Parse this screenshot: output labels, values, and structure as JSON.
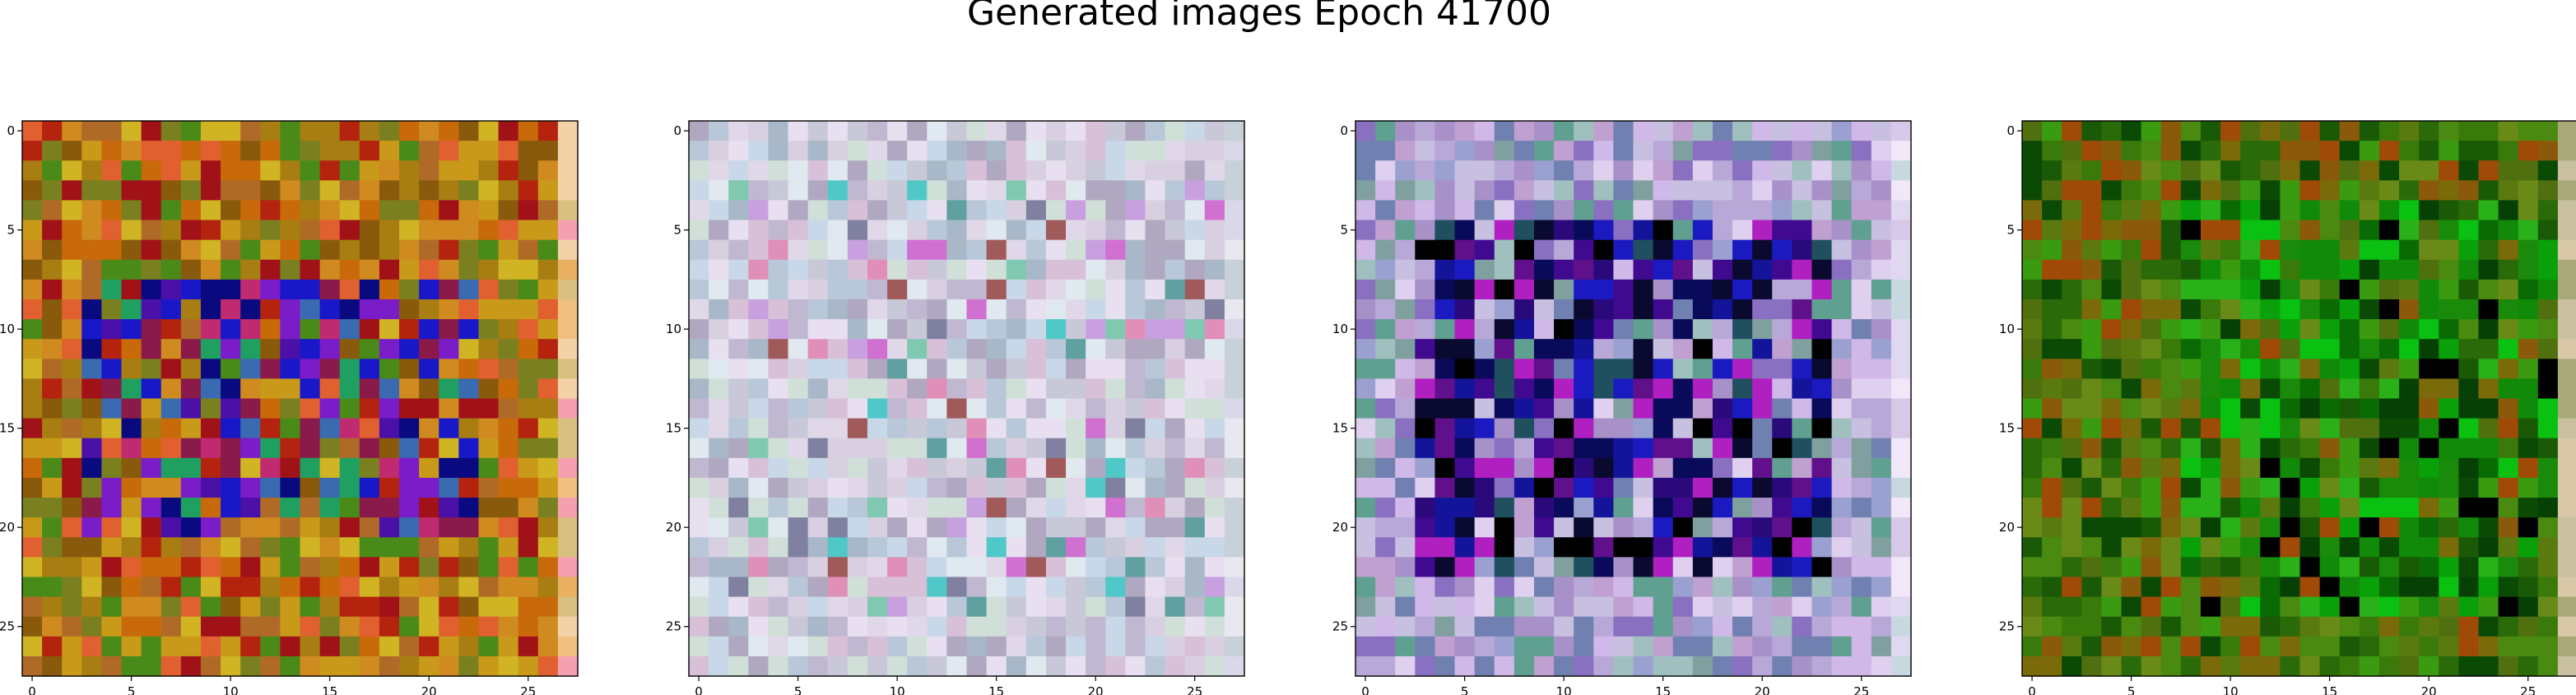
{
  "chart_data": {
    "type": "heatmap",
    "title": "Generated images Epoch 41700",
    "grid": false,
    "panels": [
      {
        "name": "",
        "rows": 28,
        "cols": 28,
        "xlim": [
          -0.5,
          27.5
        ],
        "ylim": [
          27.5,
          -0.5
        ],
        "xticks": [
          0,
          5,
          10,
          15,
          20,
          25
        ],
        "yticks": [
          0,
          5,
          10,
          15,
          20,
          25
        ],
        "palette": [
          "#b4230e",
          "#c86a0a",
          "#a87d12",
          "#8a5a0c",
          "#c99a1a",
          "#d0b424",
          "#7a8020",
          "#4a8a18",
          "#a01218",
          "#e06030",
          "#b06a28",
          "#cf8a20"
        ],
        "center_palette": [
          "#1818c8",
          "#4a10a8",
          "#7a1cc8",
          "#0a0a80",
          "#3a6ab0",
          "#8a1a4a",
          "#20a060",
          "#c02a70"
        ],
        "edge_palette": [
          "#f0c080",
          "#f3d2a8",
          "#e8b060",
          "#f5a0b0",
          "#d8c080"
        ],
        "center": {
          "row_range": [
            8,
            20
          ],
          "col_range": [
            3,
            22
          ],
          "density": 0.55
        }
      },
      {
        "name": "",
        "rows": 28,
        "cols": 28,
        "xlim": [
          -0.5,
          27.5
        ],
        "ylim": [
          27.5,
          -0.5
        ],
        "xticks": [
          0,
          5,
          10,
          15,
          20,
          25
        ],
        "yticks": [
          0,
          5,
          10,
          15,
          20,
          25
        ],
        "palette": [
          "#d8d0e0",
          "#c8c8d8",
          "#e0d8e8",
          "#b8c8d8",
          "#d0e0d8",
          "#c0b8d0",
          "#e8e0f0",
          "#a8b8c8",
          "#d8c0d8",
          "#c8d8e8",
          "#b0a8c0",
          "#e0e8f0"
        ],
        "center_palette": [
          "#d070d0",
          "#80c8b0",
          "#50c8c8",
          "#8080a0",
          "#e090b8",
          "#a05a5a",
          "#60a0a0",
          "#c8a0e0"
        ],
        "edge_palette": [
          "#d8d8e8",
          "#e8e8f0",
          "#c8d0d8"
        ],
        "center": {
          "row_range": [
            3,
            24
          ],
          "col_range": [
            2,
            26
          ],
          "density": 0.2
        }
      },
      {
        "name": "",
        "rows": 28,
        "cols": 28,
        "xlim": [
          -0.5,
          27.5
        ],
        "ylim": [
          27.5,
          -0.5
        ],
        "xticks": [
          0,
          5,
          10,
          15,
          20,
          25
        ],
        "yticks": [
          0,
          5,
          10,
          15,
          20,
          25
        ],
        "palette": [
          "#9aa0d0",
          "#b8a8d8",
          "#c8c0e0",
          "#80a0a0",
          "#a890c8",
          "#d0b8e8",
          "#7080b0",
          "#60a090",
          "#c0a0d0",
          "#e0d0f0",
          "#8a70c0",
          "#a0c0c0"
        ],
        "center_palette": [
          "#0a0a5a",
          "#14149a",
          "#000000",
          "#2a0a7a",
          "#400a90",
          "#0a0a30",
          "#1a1ac0",
          "#60108a",
          "#b020c0",
          "#205060"
        ],
        "edge_palette": [
          "#e0d8f0",
          "#d8c8e8",
          "#c8d8e0",
          "#f0e8f8"
        ],
        "center": {
          "row_range": [
            5,
            22
          ],
          "col_range": [
            3,
            23
          ],
          "density": 0.7
        }
      },
      {
        "name": "",
        "rows": 28,
        "cols": 28,
        "xlim": [
          -0.5,
          27.5
        ],
        "ylim": [
          27.5,
          -0.5
        ],
        "xticks": [
          0,
          5,
          10,
          15,
          20,
          25
        ],
        "yticks": [
          0,
          5,
          10,
          15,
          20,
          25
        ],
        "palette": [
          "#3a7a0a",
          "#2a6a08",
          "#4a8a10",
          "#1a5a06",
          "#5a7a10",
          "#7a6a0a",
          "#8a5a0a",
          "#a04a08",
          "#6a8a18",
          "#0a4a04",
          "#3a9a10",
          "#507010"
        ],
        "center_palette": [
          "#0aa00a",
          "#108a08",
          "#0a6a04",
          "#2ab018",
          "#064004",
          "#000000",
          "#1a8a0a",
          "#0ac010"
        ],
        "edge_palette": [
          "#c8c0a0",
          "#d8c8a8",
          "#a8a878"
        ],
        "center": {
          "row_range": [
            4,
            24
          ],
          "col_range": [
            8,
            27
          ],
          "density": 0.6
        }
      }
    ]
  }
}
